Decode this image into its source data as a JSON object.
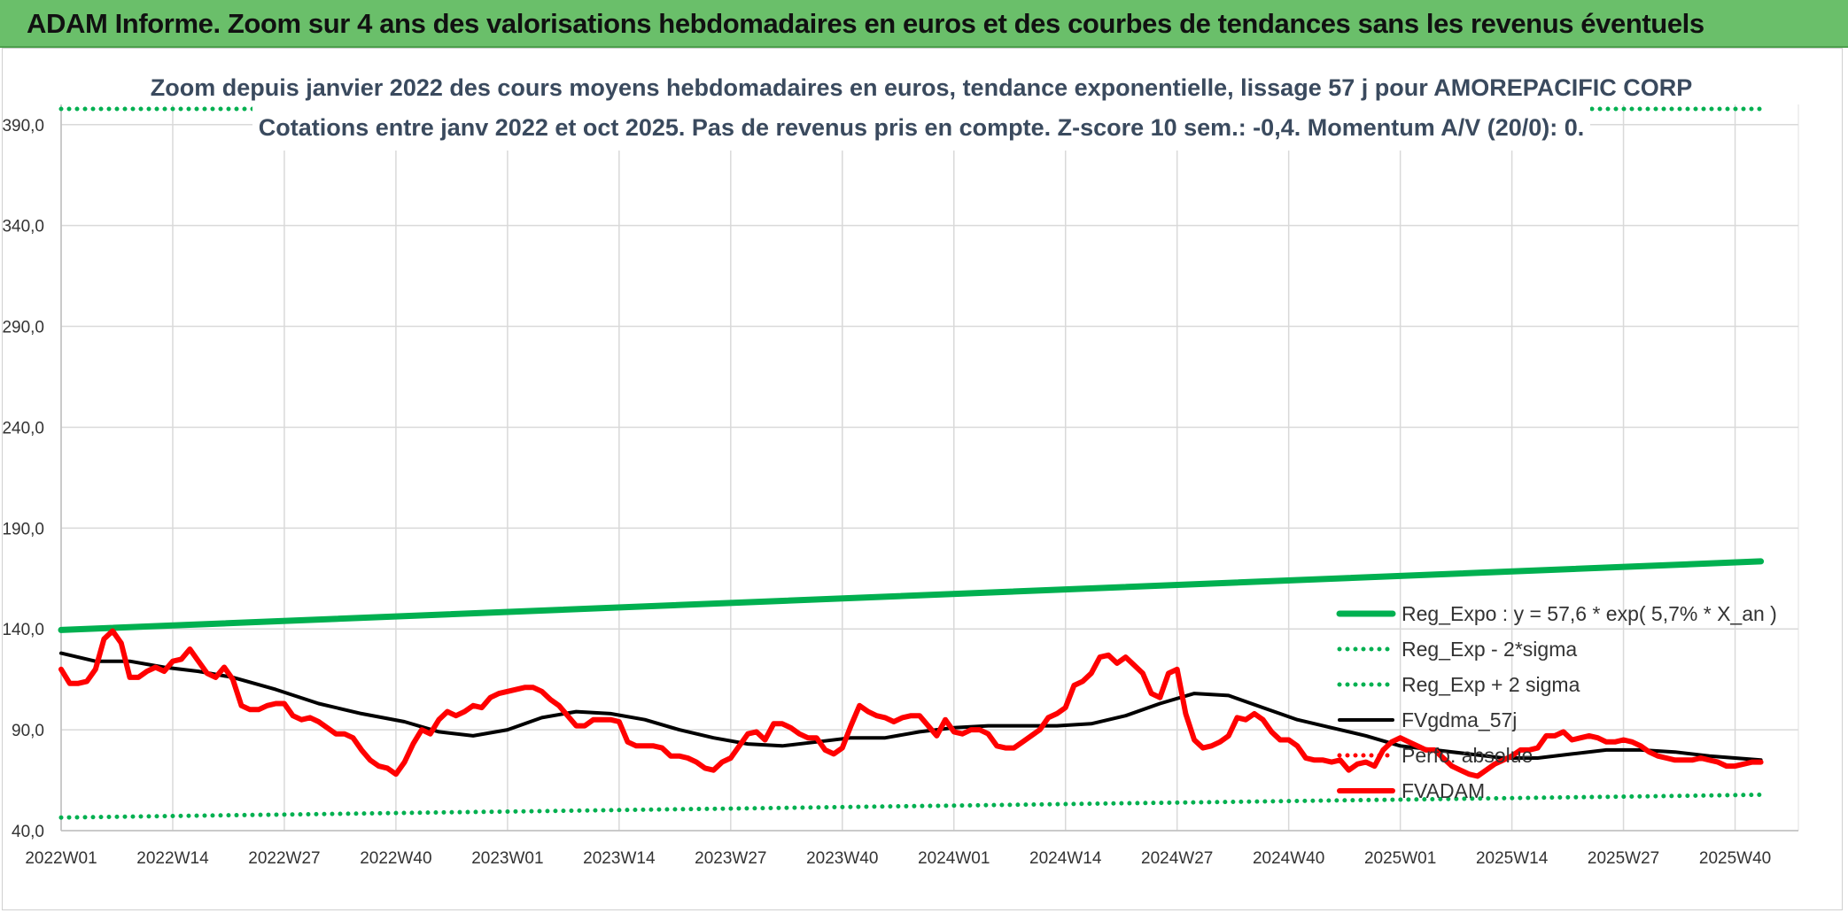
{
  "header": {
    "title": "ADAM Informe. Zoom sur 4 ans des valorisations hebdomadaires en euros et des courbes de tendances sans les revenus éventuels"
  },
  "colors": {
    "header_bg": "#6abf6a",
    "reg_expo": "#00b050",
    "sigma": "#00b050",
    "fvgdma": "#000000",
    "perfo": "#ff0000",
    "fvadam": "#ff0000",
    "grid": "#d9d9d9"
  },
  "chart_data": {
    "type": "line",
    "title": "Zoom depuis janvier 2022 des cours moyens hebdomadaires en euros, tendance exponentielle, lissage 57 j pour AMOREPACIFIC CORP",
    "subtitle": "Cotations entre janv 2022 et oct 2025. Pas de revenus pris en compte. Z-score 10 sem.: -0,4. Momentum A/V (20/0): 0.",
    "xlabel": "",
    "ylabel": "",
    "ylim": [
      40,
      400
    ],
    "yticks": [
      40,
      90,
      140,
      190,
      240,
      290,
      340,
      390
    ],
    "ytick_labels": [
      "40,0",
      "90,0",
      "140,0",
      "190,0",
      "240,0",
      "290,0",
      "340,0",
      "390,0"
    ],
    "xlim": [
      0,
      198
    ],
    "xticks": [
      0,
      13,
      26,
      39,
      52,
      65,
      78,
      91,
      104,
      117,
      130,
      143,
      156,
      169,
      182,
      195
    ],
    "xtick_labels": [
      "2022W01",
      "2022W14",
      "2022W27",
      "2022W40",
      "2023W01",
      "2023W14",
      "2023W27",
      "2023W40",
      "2024W01",
      "2024W14",
      "2024W27",
      "2024W40",
      "2025W01",
      "2025W14",
      "2025W27",
      "2025W40"
    ],
    "grid": true,
    "legend_position": "bottom-right",
    "series": [
      {
        "name": "Reg_Expo : y = 57,6 * exp( 5,7% *  X_an )",
        "style": "solid-thick",
        "x": [
          0,
          198
        ],
        "values": [
          139.5,
          173.5
        ]
      },
      {
        "name": "Reg_Exp - 2*sigma",
        "style": "dotted",
        "x": [
          0,
          198
        ],
        "values": [
          46.5,
          57.8
        ]
      },
      {
        "name": "Reg_Exp + 2 sigma",
        "style": "dotted",
        "x": [
          0,
          198
        ],
        "values": [
          400,
          400
        ]
      },
      {
        "name": "FVgdma_57j",
        "style": "solid",
        "x": [
          0,
          4,
          8,
          12,
          16,
          20,
          25,
          30,
          35,
          40,
          44,
          48,
          52,
          56,
          60,
          64,
          68,
          72,
          76,
          80,
          84,
          88,
          92,
          96,
          100,
          104,
          108,
          112,
          116,
          120,
          124,
          128,
          132,
          136,
          140,
          144,
          148,
          152,
          156,
          160,
          164,
          168,
          172,
          176,
          180,
          184,
          188,
          192,
          198
        ],
        "values": [
          128,
          124,
          124,
          121,
          119,
          116,
          110,
          103,
          98,
          94,
          89,
          87,
          90,
          96,
          99,
          98,
          95,
          90,
          86,
          83,
          82,
          84,
          86,
          86,
          89,
          91,
          92,
          92,
          92,
          93,
          97,
          103,
          108,
          107,
          101,
          95,
          91,
          87,
          82,
          80,
          78,
          76,
          76,
          78,
          80,
          80,
          79,
          77,
          75
        ]
      },
      {
        "name": "Perfo. absolue",
        "style": "dotted",
        "x": [],
        "values": []
      },
      {
        "name": "FVADAM",
        "style": "solid-thick",
        "x": [
          0,
          1,
          2,
          3,
          4,
          5,
          6,
          7,
          8,
          9,
          10,
          11,
          12,
          13,
          14,
          15,
          16,
          17,
          18,
          19,
          20,
          21,
          22,
          23,
          24,
          25,
          26,
          27,
          28,
          29,
          30,
          31,
          32,
          33,
          34,
          35,
          36,
          37,
          38,
          39,
          40,
          41,
          42,
          43,
          44,
          45,
          46,
          47,
          48,
          49,
          50,
          51,
          52,
          53,
          54,
          55,
          56,
          57,
          58,
          59,
          60,
          61,
          62,
          63,
          64,
          65,
          66,
          67,
          68,
          69,
          70,
          71,
          72,
          73,
          74,
          75,
          76,
          77,
          78,
          79,
          80,
          81,
          82,
          83,
          84,
          85,
          86,
          87,
          88,
          89,
          90,
          91,
          92,
          93,
          94,
          95,
          96,
          97,
          98,
          99,
          100,
          101,
          102,
          103,
          104,
          105,
          106,
          107,
          108,
          109,
          110,
          111,
          112,
          113,
          114,
          115,
          116,
          117,
          118,
          119,
          120,
          121,
          122,
          123,
          124,
          125,
          126,
          127,
          128,
          129,
          130,
          131,
          132,
          133,
          134,
          135,
          136,
          137,
          138,
          139,
          140,
          141,
          142,
          143,
          144,
          145,
          146,
          147,
          148,
          149,
          150,
          151,
          152,
          153,
          154,
          155,
          156,
          157,
          158,
          159,
          160,
          161,
          162,
          163,
          164,
          165,
          166,
          167,
          168,
          169,
          170,
          171,
          172,
          173,
          174,
          175,
          176,
          177,
          178,
          179,
          180,
          181,
          182,
          183,
          184,
          185,
          186,
          187,
          188,
          189,
          190,
          191,
          192,
          193,
          194,
          195,
          196,
          197,
          198
        ],
        "values": [
          120,
          113,
          113,
          114,
          120,
          135,
          139,
          133,
          116,
          116,
          119,
          121,
          119,
          124,
          125,
          130,
          124,
          118,
          116,
          121,
          115,
          102,
          100,
          100,
          102,
          103,
          103,
          97,
          95,
          96,
          94,
          91,
          88,
          88,
          86,
          80,
          75,
          72,
          71,
          68,
          74,
          83,
          90,
          88,
          95,
          99,
          97,
          99,
          102,
          101,
          106,
          108,
          109,
          110,
          111,
          111,
          109,
          105,
          102,
          97,
          92,
          92,
          95,
          95,
          95,
          94,
          84,
          82,
          82,
          82,
          81,
          77,
          77,
          76,
          74,
          71,
          70,
          74,
          76,
          82,
          88,
          89,
          85,
          93,
          93,
          91,
          88,
          86,
          86,
          80,
          78,
          81,
          92,
          102,
          99,
          97,
          96,
          94,
          96,
          97,
          97,
          92,
          87,
          95,
          89,
          88,
          90,
          90,
          88,
          82,
          81,
          81,
          84,
          87,
          90,
          96,
          98,
          101,
          112,
          114,
          118,
          126,
          127,
          123,
          126,
          122,
          118,
          108,
          106,
          118,
          120,
          98,
          85,
          81,
          82,
          84,
          87,
          96,
          95,
          98,
          95,
          89,
          85,
          85,
          82,
          76,
          75,
          75,
          74,
          75,
          70,
          73,
          74,
          72,
          80,
          84,
          86,
          84,
          82,
          80,
          80,
          76,
          72,
          70,
          68,
          67,
          70,
          73,
          75,
          77,
          80,
          80,
          81,
          87,
          87,
          89,
          85,
          86,
          87,
          86,
          84,
          84,
          85,
          84,
          82,
          79,
          77,
          76,
          75,
          75,
          75,
          76,
          75,
          74,
          72,
          72,
          73,
          74,
          74
        ]
      }
    ]
  }
}
